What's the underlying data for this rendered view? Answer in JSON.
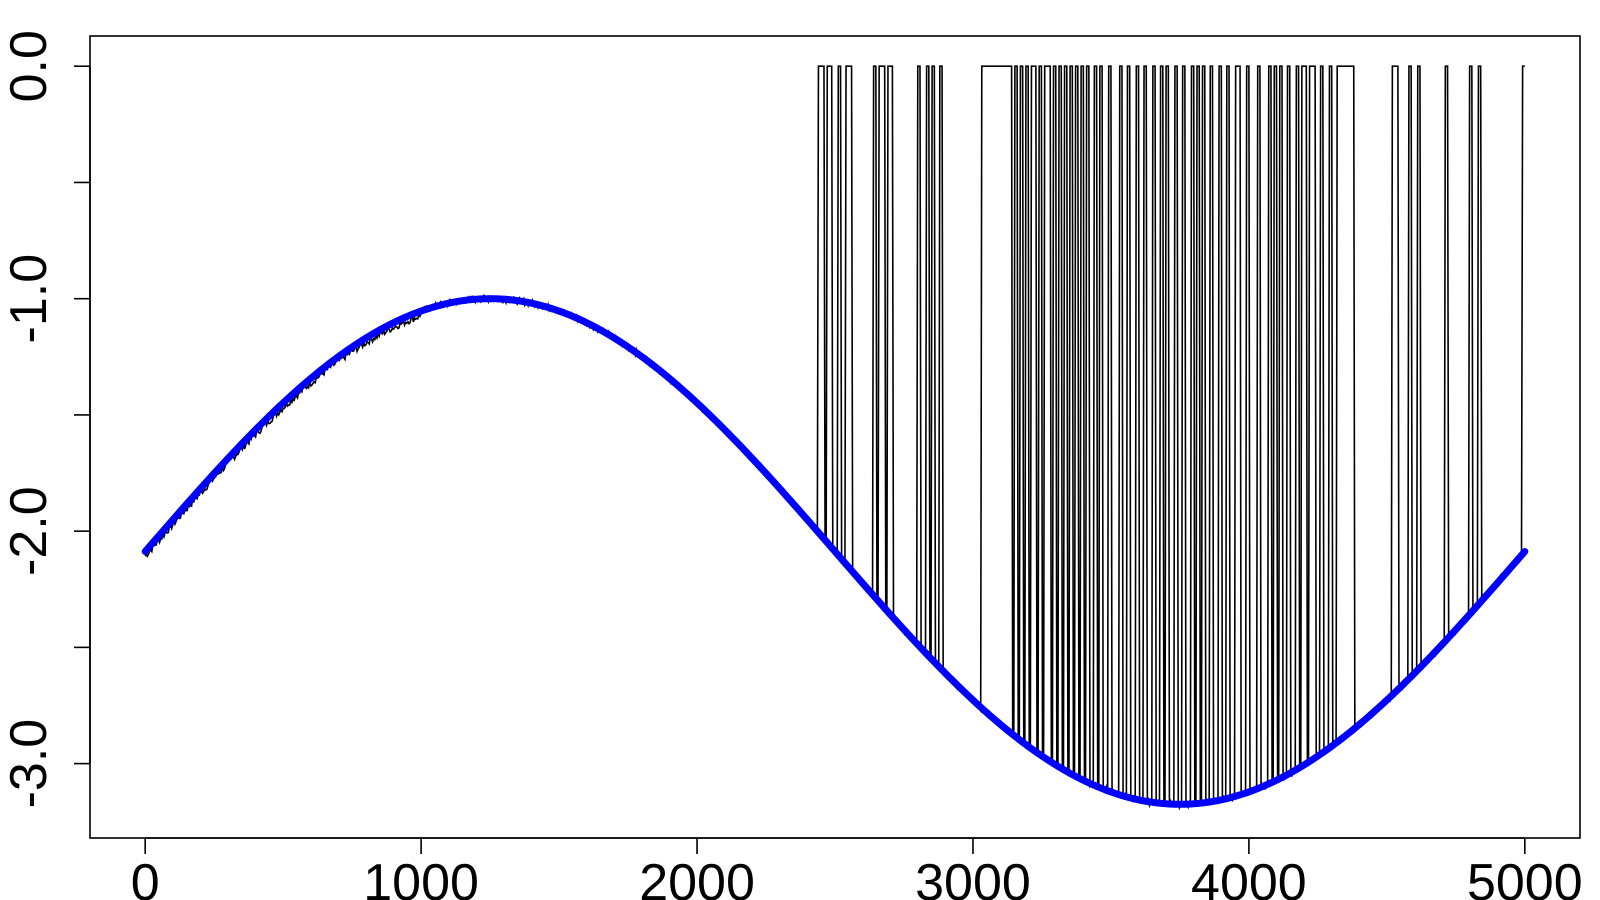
{
  "chart_data": {
    "type": "line",
    "title": "",
    "xlabel": "",
    "ylabel": "",
    "xlim": [
      -200,
      5200
    ],
    "ylim": [
      -3.32,
      0.13
    ],
    "x_ticks": [
      0,
      1000,
      2000,
      3000,
      4000,
      5000
    ],
    "x_tick_labels": [
      "0",
      "1000",
      "2000",
      "3000",
      "4000",
      "5000"
    ],
    "y_ticks": [
      -3.0,
      -2.5,
      -2.0,
      -1.5,
      -1.0,
      -0.5,
      0.0
    ],
    "y_tick_labels": [
      "-3.0",
      "",
      "-2.0",
      "",
      "-1.0",
      "",
      "0.0"
    ],
    "grid": false,
    "legend": "none",
    "series": [
      {
        "style": "thick-smooth-curve",
        "color": "#0000ff",
        "formula": "y = -2.0875 + 1.0875 * sin(2*pi*x/5000)",
        "x": [
          0,
          250,
          500,
          750,
          1000,
          1250,
          1500,
          1750,
          2000,
          2250,
          2500,
          2750,
          3000,
          3250,
          3500,
          3750,
          4000,
          4250,
          4500,
          4750,
          5000
        ],
        "values": [
          -2.09,
          -1.75,
          -1.45,
          -1.21,
          -1.05,
          -1.0,
          -1.05,
          -1.21,
          -1.45,
          -1.75,
          -2.09,
          -2.42,
          -2.72,
          -2.97,
          -3.12,
          -3.18,
          -3.12,
          -2.97,
          -2.72,
          -2.42,
          -2.09
        ]
      },
      {
        "style": "thin-trace",
        "color": "#000000",
        "baseline": "follows blue curve with small noise",
        "spike_target": 0.0,
        "spike_start_x": [
          2440,
          2470,
          2510,
          2540,
          2640,
          2660,
          2690,
          2800,
          2830,
          2850,
          2880,
          3030,
          3060,
          3100,
          3150,
          3170,
          3190,
          3210,
          3240,
          3260,
          3290,
          3310,
          3330,
          3350,
          3370,
          3390,
          3410,
          3440,
          3460,
          3490,
          3530,
          3560,
          3590,
          3620,
          3650,
          3680,
          3700,
          3730,
          3760,
          3790,
          3810,
          3830,
          3860,
          3890,
          3920,
          3950,
          3990,
          4030,
          4070,
          4090,
          4110,
          4140,
          4170,
          4190,
          4220,
          4260,
          4290,
          4320,
          4330,
          4360,
          4520,
          4580,
          4610,
          4710,
          4800,
          4830,
          4990
        ],
        "spike_end_x": [
          2460,
          2490,
          2520,
          2560,
          2650,
          2680,
          2710,
          2810,
          2840,
          2860,
          2890,
          3140,
          3080,
          3120,
          3160,
          3180,
          3200,
          3230,
          3250,
          3280,
          3300,
          3320,
          3340,
          3360,
          3380,
          3400,
          3420,
          3450,
          3470,
          3500,
          3540,
          3570,
          3600,
          3630,
          3660,
          3690,
          3710,
          3740,
          3770,
          3800,
          3820,
          3840,
          3870,
          3900,
          3930,
          3970,
          4000,
          4040,
          4080,
          4100,
          4120,
          4150,
          4180,
          4210,
          4240,
          4270,
          4300,
          4380,
          4340,
          4370,
          4540,
          4590,
          4620,
          4720,
          4810,
          4840,
          5000
        ]
      }
    ]
  }
}
